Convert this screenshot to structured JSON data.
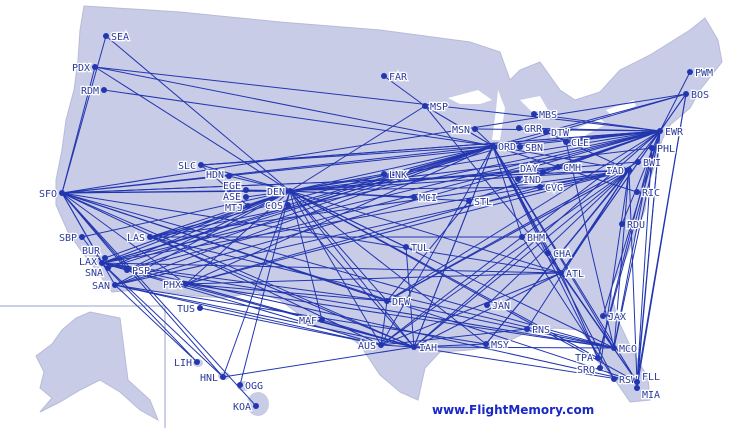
{
  "website": "www.FlightMemory.com",
  "colors": {
    "land": "#c9cce6",
    "route": "#2236b0",
    "label": "#2a3a9c",
    "water": "#ffffff"
  },
  "airports": [
    {
      "code": "SEA",
      "lx": "r"
    },
    {
      "code": "PDX",
      "lx": "l"
    },
    {
      "code": "RDM",
      "lx": "l"
    },
    {
      "code": "SFO",
      "lx": "l"
    },
    {
      "code": "SBP",
      "lx": "l"
    },
    {
      "code": "BUR",
      "lx": "l"
    },
    {
      "code": "LAX",
      "lx": "l"
    },
    {
      "code": "SNA",
      "lx": "l"
    },
    {
      "code": "PSP",
      "lx": "r"
    },
    {
      "code": "SAN",
      "lx": "l"
    },
    {
      "code": "LAS",
      "lx": "l"
    },
    {
      "code": "PHX",
      "lx": "l"
    },
    {
      "code": "TUS",
      "lx": "l"
    },
    {
      "code": "SLC",
      "lx": "l"
    },
    {
      "code": "HDN",
      "lx": "l"
    },
    {
      "code": "EGE",
      "lx": "l"
    },
    {
      "code": "ASE",
      "lx": "l"
    },
    {
      "code": "MTJ",
      "lx": "l"
    },
    {
      "code": "DEN",
      "lx": "l"
    },
    {
      "code": "COS",
      "lx": "l"
    },
    {
      "code": "FAR",
      "lx": "r"
    },
    {
      "code": "MSP",
      "lx": "r"
    },
    {
      "code": "MSN",
      "lx": "l"
    },
    {
      "code": "MBS",
      "lx": "r"
    },
    {
      "code": "GRR",
      "lx": "r"
    },
    {
      "code": "DTW",
      "lx": "r"
    },
    {
      "code": "ORD",
      "lx": "r"
    },
    {
      "code": "SBN",
      "lx": "r"
    },
    {
      "code": "CLE",
      "lx": "r"
    },
    {
      "code": "CMH",
      "lx": "r"
    },
    {
      "code": "DAY",
      "lx": "r"
    },
    {
      "code": "IND",
      "lx": "r"
    },
    {
      "code": "CVG",
      "lx": "r"
    },
    {
      "code": "EWR",
      "lx": "r"
    },
    {
      "code": "PHL",
      "lx": "r"
    },
    {
      "code": "BWI",
      "lx": "r"
    },
    {
      "code": "IAD",
      "lx": "r"
    },
    {
      "code": "RIC",
      "lx": "r"
    },
    {
      "code": "RDU",
      "lx": "r"
    },
    {
      "code": "BOS",
      "lx": "r"
    },
    {
      "code": "PWM",
      "lx": "r"
    },
    {
      "code": "LNK",
      "lx": "r"
    },
    {
      "code": "MCI",
      "lx": "r"
    },
    {
      "code": "STL",
      "lx": "r"
    },
    {
      "code": "TUL",
      "lx": "r"
    },
    {
      "code": "DFW",
      "lx": "r"
    },
    {
      "code": "MAF",
      "lx": "l"
    },
    {
      "code": "AUS",
      "lx": "l"
    },
    {
      "code": "IAH",
      "lx": "r"
    },
    {
      "code": "MSY",
      "lx": "r"
    },
    {
      "code": "JAN",
      "lx": "r"
    },
    {
      "code": "BHM",
      "lx": "r"
    },
    {
      "code": "CHA",
      "lx": "r"
    },
    {
      "code": "ATL",
      "lx": "r"
    },
    {
      "code": "PNS",
      "lx": "r"
    },
    {
      "code": "JAX",
      "lx": "r"
    },
    {
      "code": "MCO",
      "lx": "r"
    },
    {
      "code": "TPA",
      "lx": "r"
    },
    {
      "code": "SRQ",
      "lx": "r"
    },
    {
      "code": "RSW",
      "lx": "r"
    },
    {
      "code": "FLL",
      "lx": "r"
    },
    {
      "code": "MIA",
      "lx": "r"
    },
    {
      "code": "LIH",
      "lx": "l"
    },
    {
      "code": "HNL",
      "lx": "l"
    },
    {
      "code": "OGG",
      "lx": "r"
    },
    {
      "code": "KOA",
      "lx": "l"
    }
  ],
  "routes": [
    [
      "SFO",
      "SEA"
    ],
    [
      "SFO",
      "PDX"
    ],
    [
      "SFO",
      "DEN"
    ],
    [
      "SFO",
      "ORD"
    ],
    [
      "SFO",
      "EWR"
    ],
    [
      "SFO",
      "IAD"
    ],
    [
      "SFO",
      "IAH"
    ],
    [
      "SFO",
      "LAX"
    ],
    [
      "SFO",
      "SAN"
    ],
    [
      "SFO",
      "PHX"
    ],
    [
      "SFO",
      "FLL"
    ],
    [
      "SFO",
      "AUS"
    ],
    [
      "SFO",
      "HNL"
    ],
    [
      "SFO",
      "KOA"
    ],
    [
      "SFO",
      "DFW"
    ],
    [
      "SFO",
      "ATL"
    ],
    [
      "SFO",
      "CVG"
    ],
    [
      "SFO",
      "MCO"
    ],
    [
      "SFO",
      "BOS"
    ],
    [
      "PDX",
      "EWR"
    ],
    [
      "PDX",
      "DEN"
    ],
    [
      "PDX",
      "ORD"
    ],
    [
      "RDM",
      "ORD"
    ],
    [
      "SEA",
      "DEN"
    ],
    [
      "DEN",
      "EWR"
    ],
    [
      "DEN",
      "IAD"
    ],
    [
      "DEN",
      "ORD"
    ],
    [
      "DEN",
      "LAX"
    ],
    [
      "DEN",
      "SAN"
    ],
    [
      "DEN",
      "PHX"
    ],
    [
      "DEN",
      "IAH"
    ],
    [
      "DEN",
      "AUS"
    ],
    [
      "DEN",
      "DFW"
    ],
    [
      "DEN",
      "MCO"
    ],
    [
      "DEN",
      "FLL"
    ],
    [
      "DEN",
      "ATL"
    ],
    [
      "DEN",
      "STL"
    ],
    [
      "DEN",
      "MCI"
    ],
    [
      "DEN",
      "SLC"
    ],
    [
      "DEN",
      "HDN"
    ],
    [
      "DEN",
      "EGE"
    ],
    [
      "DEN",
      "ASE"
    ],
    [
      "DEN",
      "MTJ"
    ],
    [
      "DEN",
      "LNK"
    ],
    [
      "DEN",
      "CMH"
    ],
    [
      "DEN",
      "TPA"
    ],
    [
      "DEN",
      "MSY"
    ],
    [
      "DEN",
      "MAF"
    ],
    [
      "DEN",
      "OGG"
    ],
    [
      "DEN",
      "BWI"
    ],
    [
      "DEN",
      "TUL"
    ],
    [
      "ORD",
      "EWR"
    ],
    [
      "ORD",
      "IAD"
    ],
    [
      "ORD",
      "LAX"
    ],
    [
      "ORD",
      "SNA"
    ],
    [
      "ORD",
      "LAS"
    ],
    [
      "ORD",
      "PHX"
    ],
    [
      "ORD",
      "IAH"
    ],
    [
      "ORD",
      "AUS"
    ],
    [
      "ORD",
      "MCO"
    ],
    [
      "ORD",
      "FLL"
    ],
    [
      "ORD",
      "TPA"
    ],
    [
      "ORD",
      "RSW"
    ],
    [
      "ORD",
      "ATL"
    ],
    [
      "ORD",
      "MSN"
    ],
    [
      "ORD",
      "MSP"
    ],
    [
      "ORD",
      "BOS"
    ],
    [
      "ORD",
      "SAN"
    ],
    [
      "ORD",
      "SBN"
    ],
    [
      "ORD",
      "BHM"
    ],
    [
      "ORD",
      "CHA"
    ],
    [
      "ORD",
      "SLC"
    ],
    [
      "EWR",
      "LAX"
    ],
    [
      "EWR",
      "SAN"
    ],
    [
      "EWR",
      "LAS"
    ],
    [
      "EWR",
      "IAH"
    ],
    [
      "EWR",
      "AUS"
    ],
    [
      "EWR",
      "MCO"
    ],
    [
      "EWR",
      "FLL"
    ],
    [
      "EWR",
      "TPA"
    ],
    [
      "EWR",
      "MIA"
    ],
    [
      "EWR",
      "JAX"
    ],
    [
      "EWR",
      "ATL"
    ],
    [
      "EWR",
      "MSN"
    ],
    [
      "EWR",
      "GRR"
    ],
    [
      "EWR",
      "CMH"
    ],
    [
      "EWR",
      "DAY"
    ],
    [
      "EWR",
      "IND"
    ],
    [
      "EWR",
      "STL"
    ],
    [
      "EWR",
      "MSY"
    ],
    [
      "EWR",
      "DFW"
    ],
    [
      "EWR",
      "SLC"
    ],
    [
      "EWR",
      "PSP"
    ],
    [
      "EWR",
      "BOS"
    ],
    [
      "EWR",
      "PWM"
    ],
    [
      "EWR",
      "RDU"
    ],
    [
      "EWR",
      "MBS"
    ],
    [
      "EWR",
      "CLE"
    ],
    [
      "IAD",
      "LAX"
    ],
    [
      "IAD",
      "SAN"
    ],
    [
      "IAD",
      "SFO"
    ],
    [
      "IAD",
      "IAH"
    ],
    [
      "IAD",
      "AUS"
    ],
    [
      "IAD",
      "MCO"
    ],
    [
      "IAD",
      "FLL"
    ],
    [
      "IAD",
      "SRQ"
    ],
    [
      "IAD",
      "DFW"
    ],
    [
      "IAD",
      "MSY"
    ],
    [
      "IAD",
      "PNS"
    ],
    [
      "IAD",
      "JAN"
    ],
    [
      "IAD",
      "ATL"
    ],
    [
      "IAD",
      "LAS"
    ],
    [
      "IAD",
      "PHX"
    ],
    [
      "IAD",
      "DTW"
    ],
    [
      "IAD",
      "CVG"
    ],
    [
      "IAH",
      "LAX"
    ],
    [
      "IAH",
      "SAN"
    ],
    [
      "IAH",
      "PHX"
    ],
    [
      "IAH",
      "LAS"
    ],
    [
      "IAH",
      "MCO"
    ],
    [
      "IAH",
      "FLL"
    ],
    [
      "IAH",
      "ATL"
    ],
    [
      "IAH",
      "TUL"
    ],
    [
      "IAH",
      "MSY"
    ],
    [
      "IAH",
      "AUS"
    ],
    [
      "IAH",
      "MAF"
    ],
    [
      "IAH",
      "HNL"
    ],
    [
      "IAH",
      "ORD"
    ],
    [
      "AUS",
      "LAX"
    ],
    [
      "AUS",
      "SAN"
    ],
    [
      "AUS",
      "TUS"
    ],
    [
      "AUS",
      "DFW"
    ],
    [
      "AUS",
      "PNS"
    ],
    [
      "AUS",
      "ATL"
    ],
    [
      "DFW",
      "LAX"
    ],
    [
      "DFW",
      "PHX"
    ],
    [
      "DFW",
      "MCO"
    ],
    [
      "DFW",
      "BWI"
    ],
    [
      "DFW",
      "STL"
    ],
    [
      "LAX",
      "FLL"
    ],
    [
      "LAX",
      "MCO"
    ],
    [
      "LAX",
      "HNL"
    ],
    [
      "LAX",
      "LIH"
    ],
    [
      "LAX",
      "ATL"
    ],
    [
      "LAX",
      "BOS"
    ],
    [
      "SAN",
      "LIH"
    ],
    [
      "SAN",
      "MSY"
    ],
    [
      "LAS",
      "MCO"
    ],
    [
      "LAS",
      "BHM"
    ],
    [
      "PHX",
      "MCO"
    ],
    [
      "PHX",
      "ATL"
    ],
    [
      "ATL",
      "MCO"
    ],
    [
      "ATL",
      "FLL"
    ],
    [
      "ATL",
      "TPA"
    ],
    [
      "ATL",
      "MSP"
    ],
    [
      "ATL",
      "BOS"
    ],
    [
      "CHA",
      "FLL"
    ],
    [
      "BHM",
      "RSW"
    ],
    [
      "MCO",
      "PHL"
    ],
    [
      "FLL",
      "PHL"
    ],
    [
      "TPA",
      "PHL"
    ],
    [
      "FLL",
      "BOS"
    ],
    [
      "MCO",
      "CLE"
    ],
    [
      "MSP",
      "FAR"
    ],
    [
      "MSP",
      "ORD"
    ],
    [
      "MSP",
      "DEN"
    ],
    [
      "SLC",
      "EWR"
    ],
    [
      "SLC",
      "MTJ"
    ],
    [
      "CVG",
      "PHX"
    ],
    [
      "PHL",
      "DEN"
    ],
    [
      "BOS",
      "MIA"
    ],
    [
      "RIC",
      "ORD"
    ],
    [
      "SBP",
      "DEN"
    ],
    [
      "SBP",
      "LAX"
    ],
    [
      "BUR",
      "DEN"
    ],
    [
      "SNA",
      "DEN"
    ],
    [
      "PSP",
      "DEN"
    ],
    [
      "PSP",
      "ORD"
    ],
    [
      "SFO",
      "PSP"
    ],
    [
      "LAS",
      "DEN"
    ],
    [
      "COS",
      "ORD"
    ],
    [
      "COS",
      "IAH"
    ],
    [
      "HNL",
      "DEN"
    ]
  ]
}
